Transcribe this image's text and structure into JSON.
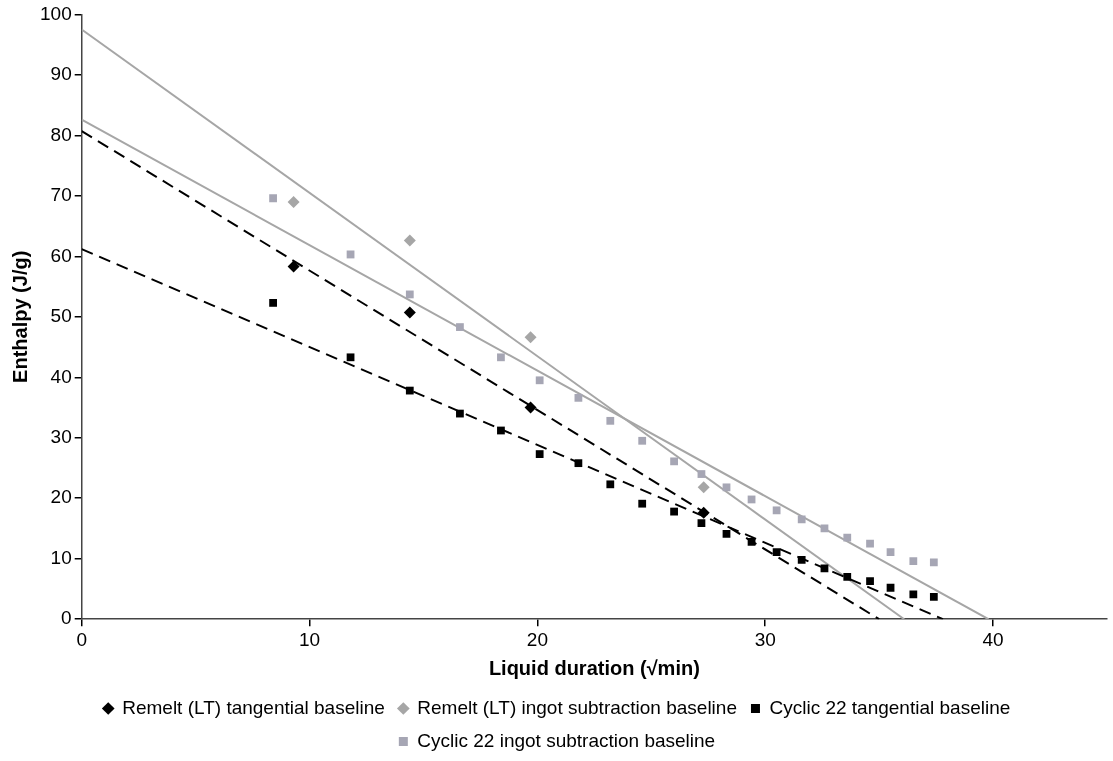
{
  "chart_data": {
    "type": "scatter",
    "xlabel": "Liquid duration (√min)",
    "ylabel": "Enthalpy (J/g)",
    "xlim": [
      0,
      45
    ],
    "xticks": [
      0,
      10,
      20,
      30,
      40
    ],
    "ylim": [
      0,
      100
    ],
    "yticks": [
      0,
      10,
      20,
      30,
      40,
      50,
      60,
      70,
      80,
      90,
      100
    ],
    "grid": false,
    "legend": "bottom",
    "series": [
      {
        "name": "Remelt (LT) tangential baseline",
        "type": "scatter",
        "marker": "diamond",
        "color": "#000000",
        "x": [
          9.3,
          14.4,
          19.7,
          27.3
        ],
        "values": [
          58.3,
          50.7,
          35,
          17.6
        ]
      },
      {
        "name": "Remelt (LT) ingot subtraction baseline",
        "type": "scatter",
        "marker": "diamond",
        "color": "#a6a6a6",
        "x": [
          9.3,
          14.4,
          19.7,
          27.3
        ],
        "values": [
          69,
          62.6,
          46.6,
          21.8
        ]
      },
      {
        "name": "Cyclic 22 tangential baseline",
        "type": "scatter",
        "marker": "square",
        "color": "#000000",
        "x": [
          8.4,
          11.8,
          14.4,
          16.6,
          18.4,
          20.1,
          21.8,
          23.2,
          24.6,
          26,
          27.2,
          28.3,
          29.4,
          30.5,
          31.6,
          32.6,
          33.6,
          34.6,
          35.5,
          36.5,
          37.4
        ],
        "values": [
          52.3,
          43.3,
          37.8,
          34,
          31.2,
          27.3,
          25.8,
          22.3,
          19.1,
          17.8,
          15.9,
          14.1,
          12.8,
          11.1,
          9.8,
          8.4,
          7,
          6.3,
          5.2,
          4.1,
          3.7
        ]
      },
      {
        "name": "Cyclic 22 ingot subtraction baseline",
        "type": "scatter",
        "marker": "square",
        "color": "#a6a6b4",
        "x": [
          8.4,
          11.8,
          14.4,
          16.6,
          18.4,
          20.1,
          21.8,
          23.2,
          24.6,
          26,
          27.2,
          28.3,
          29.4,
          30.5,
          31.6,
          32.6,
          33.6,
          34.6,
          35.5,
          36.5,
          37.4
        ],
        "values": [
          69.6,
          60.3,
          53.7,
          48.3,
          43.3,
          39.5,
          36.6,
          32.8,
          29.5,
          26.1,
          24,
          21.8,
          19.8,
          18,
          16.5,
          15,
          13.5,
          12.5,
          11.1,
          9.6,
          9.4
        ]
      },
      {
        "type": "line",
        "marker": "none",
        "line_style": "dashed",
        "color": "#000000",
        "x": [
          0,
          35
        ],
        "values": [
          80.7,
          0
        ]
      },
      {
        "type": "line",
        "marker": "none",
        "line_style": "dashed",
        "color": "#000000",
        "x": [
          0,
          37.8
        ],
        "values": [
          61.2,
          0
        ]
      },
      {
        "type": "line",
        "marker": "none",
        "line_style": "solid",
        "color": "#a6a6a6",
        "x": [
          0,
          36.1
        ],
        "values": [
          97.5,
          0
        ]
      },
      {
        "type": "line",
        "marker": "none",
        "line_style": "solid",
        "color": "#a6a6a6",
        "x": [
          0,
          39.8
        ],
        "values": [
          82.6,
          0
        ]
      }
    ]
  }
}
